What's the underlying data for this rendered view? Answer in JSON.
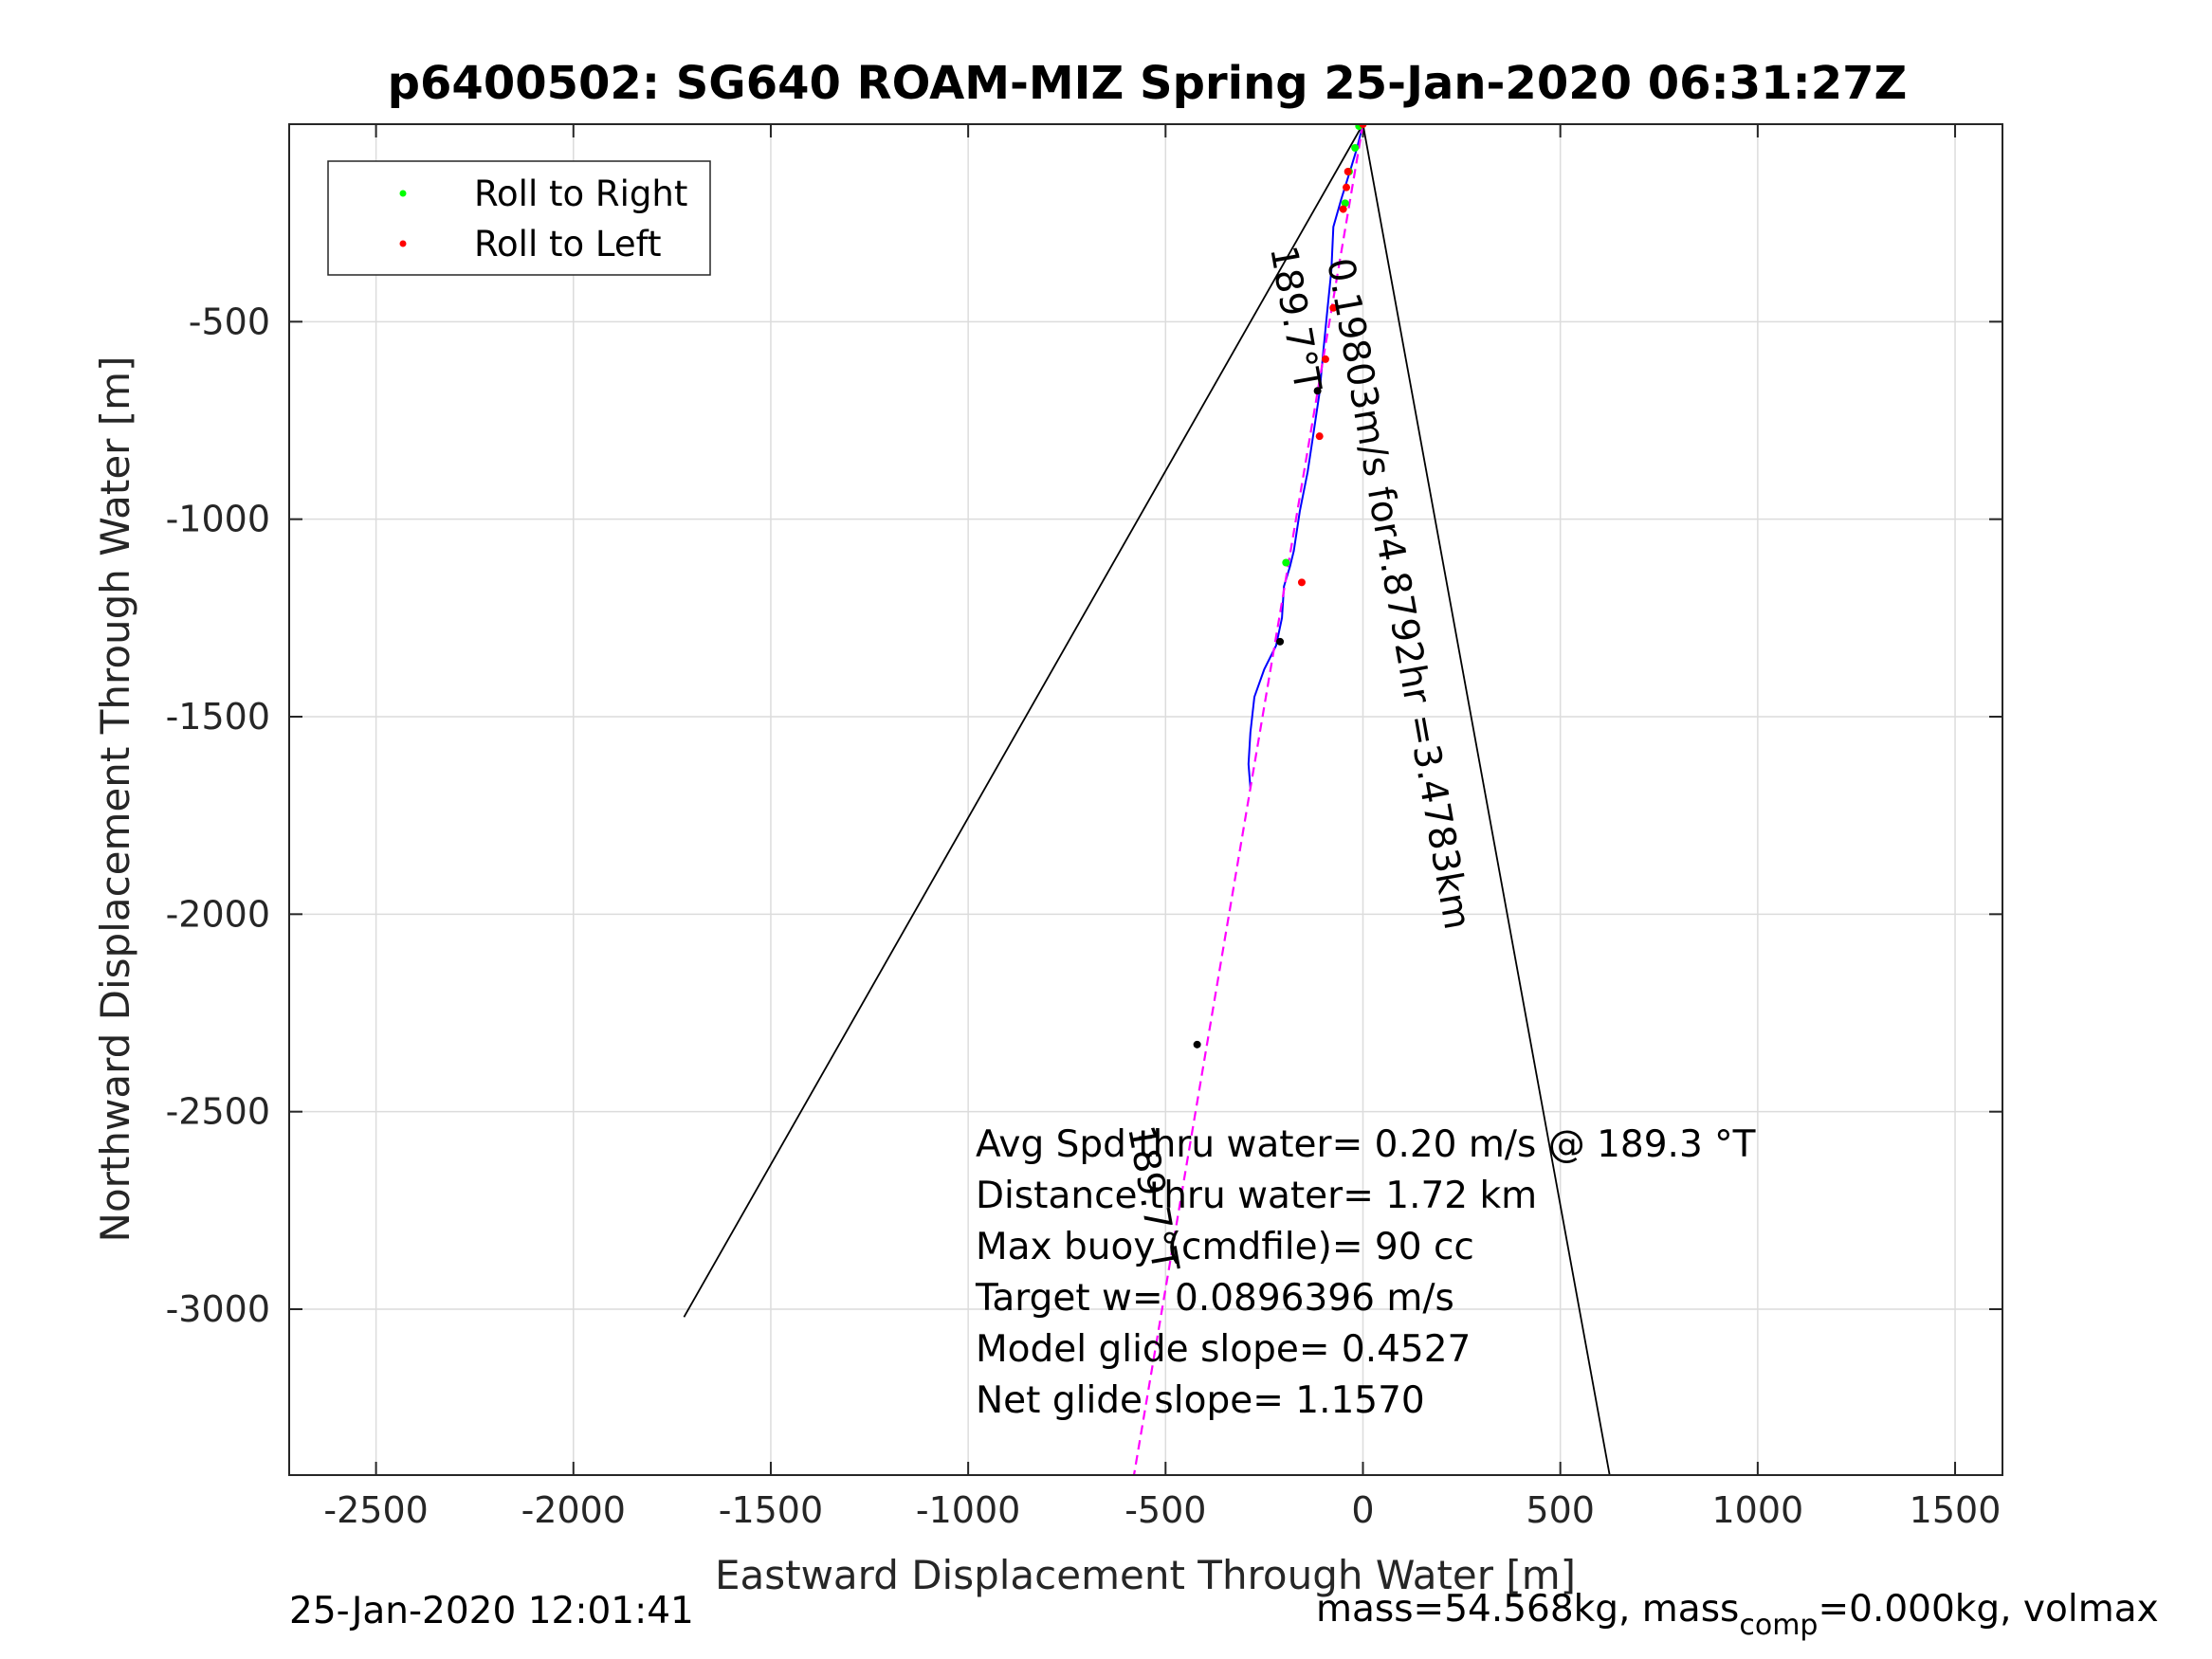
{
  "chart_data": {
    "type": "line",
    "title": "p6400502: SG640 ROAM-MIZ Spring 25-Jan-2020 06:31:27Z",
    "xlabel": "Eastward Displacement Through Water [m]",
    "ylabel": "Northward Displacement Through Water [m]",
    "xlim": [
      -2720,
      1620
    ],
    "ylim": [
      -3420,
      0
    ],
    "xticks": [
      -2500,
      -2000,
      -1500,
      -1000,
      -500,
      0,
      500,
      1000,
      1500
    ],
    "yticks": [
      -500,
      -1000,
      -1500,
      -2000,
      -2500,
      -3000
    ],
    "grid": true,
    "legend": {
      "placement": "top-left",
      "entries": [
        {
          "label": "Roll to Right",
          "color": "#00ff00"
        },
        {
          "label": "Roll to Left",
          "color": "#ff0000"
        }
      ]
    },
    "series": [
      {
        "color": "#0000ff",
        "kind": "track",
        "x": [
          0,
          -15,
          -30,
          -55,
          -75,
          -80,
          -90,
          -100,
          -110,
          -125,
          -140,
          -160,
          -175,
          -185,
          -200,
          -205,
          -220,
          -250,
          -275,
          -285,
          -290,
          -285
        ],
        "y": [
          0,
          -60,
          -110,
          -190,
          -260,
          -370,
          -470,
          -570,
          -680,
          -780,
          -880,
          -980,
          -1080,
          -1120,
          -1170,
          -1250,
          -1320,
          -1380,
          -1450,
          -1540,
          -1620,
          -1680
        ]
      },
      {
        "color": "#ff00ff",
        "kind": "heading-line",
        "x": [
          0,
          -580
        ],
        "y": [
          0,
          -3420
        ]
      },
      {
        "color": "#000000",
        "kind": "cone-left",
        "x": [
          0,
          -1720
        ],
        "y": [
          0,
          -3020
        ]
      },
      {
        "color": "#000000",
        "kind": "cone-right",
        "x": [
          0,
          625
        ],
        "y": [
          0,
          -3420
        ]
      }
    ],
    "roll_right_points": {
      "x": [
        -10,
        -20,
        -35,
        -45,
        -195
      ],
      "y": [
        -5,
        -60,
        -120,
        -200,
        -1110
      ]
    },
    "roll_left_points": {
      "x": [
        0,
        -38,
        -42,
        -50,
        -75,
        -95,
        -110,
        -155
      ],
      "y": [
        0,
        -120,
        -160,
        -215,
        -465,
        -595,
        -790,
        -1160
      ]
    },
    "marker_points": {
      "x": [
        -115,
        -210,
        -420
      ],
      "y": [
        -675,
        -1310,
        -2330
      ]
    },
    "annotations": {
      "heading_label": "189.7°T",
      "heading_label_lower": "189.7°T",
      "speed_label": "0.19803m/s for4.8792hr =3.4783km",
      "stats": [
        "Avg Spd thru water=  0.20 m/s @ 189.3 °T",
        "Distance thru water=  1.72 km",
        "Max buoy (cmdfile)= 90 cc",
        "Target w= 0.0896396 m/s",
        "Model glide slope= 0.4527",
        "Net glide slope= 1.1570"
      ]
    }
  },
  "footer": {
    "timestamp": "25-Jan-2020 12:01:41",
    "mass_text_1": "mass=54.568kg, mass",
    "mass_subscript": "comp",
    "mass_text_2": "=0.000kg, volmax"
  }
}
